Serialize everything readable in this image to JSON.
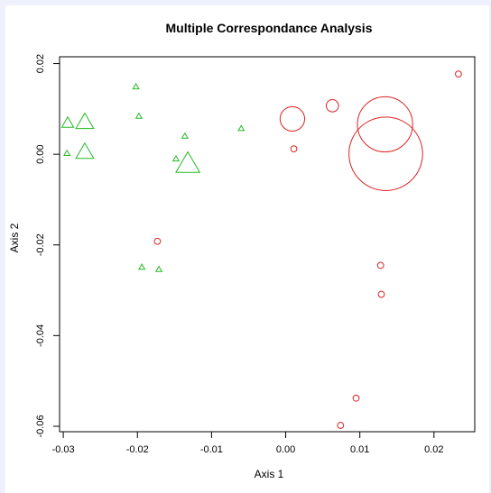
{
  "chart_data": {
    "type": "scatter",
    "title": "Multiple Correspondance Analysis",
    "xlabel": "Axis 1",
    "ylabel": "Axis 2",
    "xlim": [
      -0.0305,
      0.0255
    ],
    "ylim": [
      -0.0612,
      0.0215
    ],
    "x_ticks": [
      -0.03,
      -0.02,
      -0.01,
      0.0,
      0.01,
      0.02
    ],
    "x_tick_labels": [
      "-0.03",
      "-0.02",
      "-0.01",
      "0.00",
      "0.01",
      "0.02"
    ],
    "y_ticks": [
      -0.06,
      -0.04,
      -0.02,
      0.0,
      0.02
    ],
    "y_tick_labels": [
      "-0.06",
      "-0.04",
      "-0.02",
      "0.00",
      "0.02"
    ],
    "grid": false,
    "series": [
      {
        "marker": "triangle",
        "color": "#22bb22",
        "points": [
          {
            "x": -0.0294,
            "y": 0.0067,
            "size": 2
          },
          {
            "x": -0.0271,
            "y": 0.0068,
            "size": 3
          },
          {
            "x": -0.0295,
            "y": 0.0001,
            "size": 1
          },
          {
            "x": -0.0271,
            "y": 0.0002,
            "size": 3
          },
          {
            "x": -0.0202,
            "y": 0.0148,
            "size": 1
          },
          {
            "x": -0.0198,
            "y": 0.0083,
            "size": 1
          },
          {
            "x": -0.0136,
            "y": 0.0039,
            "size": 1
          },
          {
            "x": -0.0148,
            "y": -0.0011,
            "size": 1
          },
          {
            "x": -0.0132,
            "y": -0.0025,
            "size": 4
          },
          {
            "x": -0.006,
            "y": 0.0056,
            "size": 1
          },
          {
            "x": -0.0194,
            "y": -0.025,
            "size": 1
          },
          {
            "x": -0.0171,
            "y": -0.0255,
            "size": 1
          }
        ]
      },
      {
        "marker": "circle",
        "color": "#dd2222",
        "points": [
          {
            "x": 0.0233,
            "y": 0.0177,
            "size": 1
          },
          {
            "x": 0.0009,
            "y": 0.0078,
            "size": 4
          },
          {
            "x": 0.0063,
            "y": 0.0107,
            "size": 2
          },
          {
            "x": 0.0011,
            "y": 0.0012,
            "size": 1
          },
          {
            "x": 0.0134,
            "y": 0.0066,
            "size": 9
          },
          {
            "x": 0.0135,
            "y": 0.0001,
            "size": 12
          },
          {
            "x": -0.0173,
            "y": -0.0192,
            "size": 1
          },
          {
            "x": 0.0128,
            "y": -0.0245,
            "size": 1
          },
          {
            "x": 0.0129,
            "y": -0.0309,
            "size": 1
          },
          {
            "x": 0.0095,
            "y": -0.0538,
            "size": 1
          },
          {
            "x": 0.0074,
            "y": -0.0598,
            "size": 1
          }
        ]
      }
    ]
  }
}
